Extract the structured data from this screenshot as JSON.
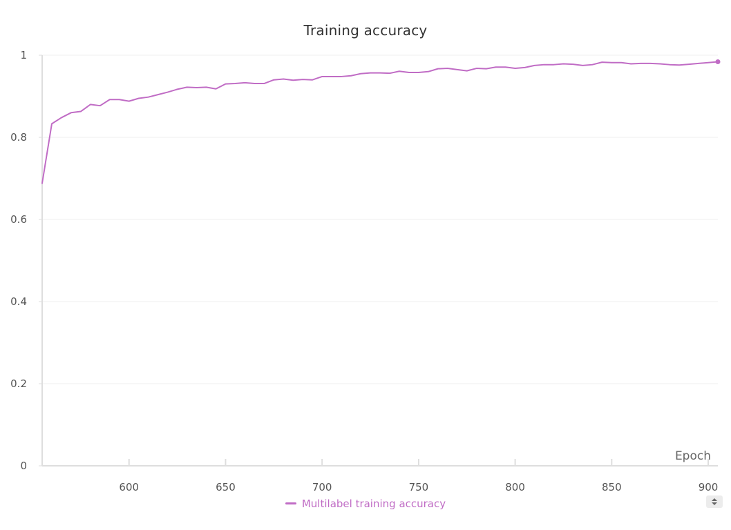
{
  "chart_data": {
    "type": "line",
    "title": "Training accuracy",
    "xlabel": "Epoch",
    "ylabel": "",
    "xlim": [
      555,
      905
    ],
    "ylim": [
      0,
      1
    ],
    "x_ticks": [
      600,
      650,
      700,
      750,
      800,
      850,
      900
    ],
    "y_ticks": [
      0,
      0.2,
      0.4,
      0.6,
      0.8,
      1
    ],
    "y_tick_labels": [
      "0",
      "0.2",
      "0.4",
      "0.6",
      "0.8",
      "1"
    ],
    "grid": true,
    "legend_position": "bottom-center",
    "series": [
      {
        "name": "Multilabel training accuracy",
        "color": "#c06cc5",
        "x": [
          555,
          560,
          565,
          570,
          575,
          580,
          585,
          590,
          595,
          600,
          605,
          610,
          615,
          620,
          625,
          630,
          635,
          640,
          645,
          650,
          655,
          660,
          665,
          670,
          675,
          680,
          685,
          690,
          695,
          700,
          705,
          710,
          715,
          720,
          725,
          730,
          735,
          740,
          745,
          750,
          755,
          760,
          765,
          770,
          775,
          780,
          785,
          790,
          795,
          800,
          805,
          810,
          815,
          820,
          825,
          830,
          835,
          840,
          845,
          850,
          855,
          860,
          865,
          870,
          875,
          880,
          885,
          890,
          895,
          900,
          905
        ],
        "values": [
          0.688,
          0.833,
          0.848,
          0.86,
          0.863,
          0.88,
          0.877,
          0.892,
          0.892,
          0.888,
          0.895,
          0.898,
          0.904,
          0.91,
          0.917,
          0.922,
          0.921,
          0.922,
          0.918,
          0.93,
          0.931,
          0.933,
          0.931,
          0.931,
          0.94,
          0.942,
          0.939,
          0.941,
          0.94,
          0.948,
          0.948,
          0.948,
          0.95,
          0.955,
          0.957,
          0.957,
          0.956,
          0.961,
          0.958,
          0.958,
          0.96,
          0.967,
          0.968,
          0.965,
          0.962,
          0.968,
          0.967,
          0.971,
          0.971,
          0.968,
          0.97,
          0.975,
          0.977,
          0.977,
          0.979,
          0.978,
          0.975,
          0.977,
          0.983,
          0.982,
          0.982,
          0.979,
          0.98,
          0.98,
          0.979,
          0.977,
          0.976,
          0.978,
          0.98,
          0.982,
          0.984
        ]
      }
    ]
  }
}
